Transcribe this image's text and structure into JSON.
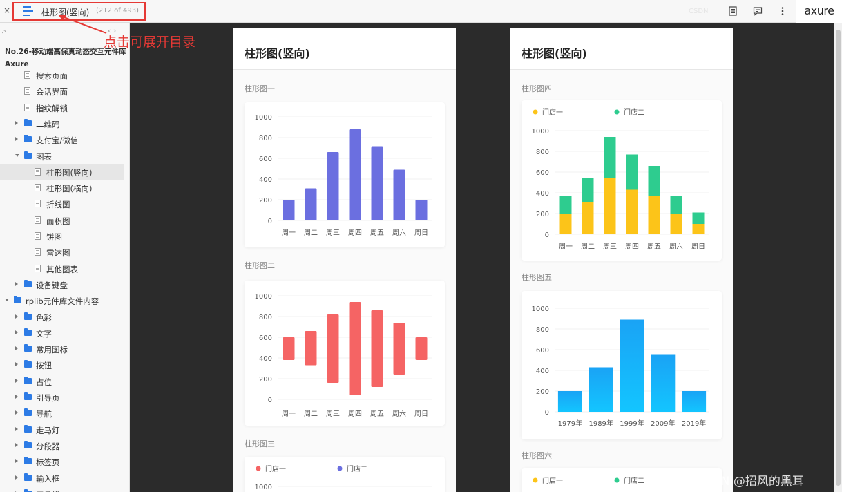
{
  "topbar": {
    "close_glyph": "×",
    "page_title": "柱形图(竖向)",
    "page_count": "(212 of 493)",
    "ghost_text": "CSDN",
    "logo": "axure",
    "icons": [
      "notes-icon",
      "comment-icon",
      "more-icon"
    ]
  },
  "annotation": {
    "text": "点击可展开目录",
    "color": "#e53935"
  },
  "sidebar": {
    "search_glyph": "⌕",
    "nav_arrows": "‹ ›",
    "project_title": "No.26-移动端高保真动态交互元件库 Axure",
    "items": [
      {
        "label": "搜索页面",
        "type": "page"
      },
      {
        "label": "会话界面",
        "type": "page"
      },
      {
        "label": "指纹解锁",
        "type": "page"
      },
      {
        "label": "二维码",
        "type": "folder",
        "expanded": false
      },
      {
        "label": "支付宝/微信",
        "type": "folder",
        "expanded": false
      },
      {
        "label": "图表",
        "type": "folder",
        "expanded": true
      },
      {
        "label": "柱形图(竖向)",
        "type": "page",
        "selected": true
      },
      {
        "label": "柱形图(横向)",
        "type": "page"
      },
      {
        "label": "折线图",
        "type": "page"
      },
      {
        "label": "面积图",
        "type": "page"
      },
      {
        "label": "饼图",
        "type": "page"
      },
      {
        "label": "雷达图",
        "type": "page"
      },
      {
        "label": "其他图表",
        "type": "page"
      },
      {
        "label": "设备键盘",
        "type": "folder",
        "expanded": false
      },
      {
        "label": "rplib元件库文件内容",
        "type": "folder",
        "expanded": true
      },
      {
        "label": "色彩",
        "type": "folder",
        "expanded": false
      },
      {
        "label": "文字",
        "type": "folder",
        "expanded": false
      },
      {
        "label": "常用图标",
        "type": "folder",
        "expanded": false
      },
      {
        "label": "按钮",
        "type": "folder",
        "expanded": false
      },
      {
        "label": "占位",
        "type": "folder",
        "expanded": false
      },
      {
        "label": "引导页",
        "type": "folder",
        "expanded": false
      },
      {
        "label": "导航",
        "type": "folder",
        "expanded": false
      },
      {
        "label": "走马灯",
        "type": "folder",
        "expanded": false
      },
      {
        "label": "分段器",
        "type": "folder",
        "expanded": false
      },
      {
        "label": "标签页",
        "type": "folder",
        "expanded": false
      },
      {
        "label": "输入框",
        "type": "folder",
        "expanded": false
      },
      {
        "label": "工具栏",
        "type": "folder",
        "expanded": false
      }
    ]
  },
  "cards": [
    {
      "title": "柱形图(竖向)",
      "sections": [
        "柱形图一",
        "柱形图二",
        "柱形图三"
      ]
    },
    {
      "title": "柱形图(竖向)",
      "sections": [
        "柱形图四",
        "柱形图五",
        "柱形图六"
      ]
    }
  ],
  "chart_data": [
    {
      "name": "柱形图一",
      "type": "bar",
      "categories": [
        "周一",
        "周二",
        "周三",
        "周四",
        "周五",
        "周六",
        "周日"
      ],
      "values": [
        200,
        310,
        660,
        880,
        710,
        490,
        200
      ],
      "yticks": [
        0,
        200,
        400,
        600,
        800,
        1000
      ],
      "ylim": [
        0,
        1000
      ],
      "colors": [
        "#6b6fe0"
      ]
    },
    {
      "name": "柱形图二",
      "type": "bar",
      "subtype": "floating-range",
      "categories": [
        "周一",
        "周二",
        "周三",
        "周四",
        "周五",
        "周六",
        "周日"
      ],
      "ranges": [
        [
          380,
          600
        ],
        [
          330,
          660
        ],
        [
          160,
          820
        ],
        [
          40,
          940
        ],
        [
          120,
          860
        ],
        [
          240,
          740
        ],
        [
          380,
          600
        ]
      ],
      "yticks": [
        0,
        200,
        400,
        600,
        800,
        1000
      ],
      "ylim": [
        0,
        1000
      ],
      "colors": [
        "#f56464"
      ]
    },
    {
      "name": "柱形图三",
      "type": "bar",
      "series": [
        {
          "name": "门店一"
        },
        {
          "name": "门店二"
        }
      ],
      "yticks": [
        1000
      ],
      "colors": [
        "#f56464",
        "#6b6fe0"
      ]
    },
    {
      "name": "柱形图四",
      "type": "bar",
      "subtype": "stacked",
      "categories": [
        "周一",
        "周二",
        "周三",
        "周四",
        "周五",
        "周六",
        "周日"
      ],
      "series": [
        {
          "name": "门店一",
          "values": [
            200,
            310,
            540,
            430,
            370,
            200,
            100
          ]
        },
        {
          "name": "门店二",
          "values": [
            170,
            230,
            400,
            340,
            290,
            170,
            110
          ]
        }
      ],
      "yticks": [
        0,
        200,
        400,
        600,
        800,
        1000
      ],
      "ylim": [
        0,
        1000
      ],
      "colors": [
        "#fcc419",
        "#2ecc8f"
      ]
    },
    {
      "name": "柱形图五",
      "type": "bar",
      "categories": [
        "1979年",
        "1989年",
        "1999年",
        "2009年",
        "2019年"
      ],
      "values": [
        200,
        430,
        890,
        550,
        200
      ],
      "yticks": [
        0,
        200,
        400,
        600,
        800,
        1000
      ],
      "ylim": [
        0,
        1000
      ],
      "colors": [
        "#13b4ff"
      ]
    },
    {
      "name": "柱形图六",
      "type": "bar",
      "series": [
        {
          "name": "门店一"
        },
        {
          "name": "门店二"
        }
      ],
      "colors": [
        "#fcc419",
        "#2ecc8f"
      ]
    }
  ],
  "watermark": "CSDN @招风的黑耳"
}
